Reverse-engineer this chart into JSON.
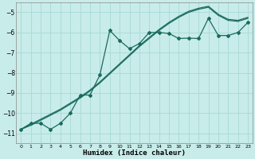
{
  "xlabel": "Humidex (Indice chaleur)",
  "bg_color": "#c8ecea",
  "grid_color": "#a8d8d4",
  "line_color": "#1a6b5e",
  "xlim": [
    -0.5,
    23.5
  ],
  "ylim": [
    -11.5,
    -4.5
  ],
  "yticks": [
    -11,
    -10,
    -9,
    -8,
    -7,
    -6,
    -5
  ],
  "xticks": [
    0,
    1,
    2,
    3,
    4,
    5,
    6,
    7,
    8,
    9,
    10,
    11,
    12,
    13,
    14,
    15,
    16,
    17,
    18,
    19,
    20,
    21,
    22,
    23
  ],
  "line1_x": [
    0,
    1,
    2,
    3,
    4,
    5,
    6,
    7,
    8,
    9,
    10,
    11,
    12,
    13,
    14,
    15,
    16,
    17,
    18,
    19,
    20,
    21,
    22,
    23
  ],
  "line1_y": [
    -10.8,
    -10.5,
    -10.5,
    -10.8,
    -10.5,
    -10.0,
    -9.1,
    -9.1,
    -8.1,
    -5.9,
    -6.4,
    -6.8,
    -6.55,
    -6.0,
    -6.0,
    -6.05,
    -6.3,
    -6.28,
    -6.3,
    -5.3,
    -6.15,
    -6.15,
    -6.0,
    -5.5
  ],
  "line2_x": [
    0,
    1,
    2,
    3,
    4,
    5,
    6,
    7,
    8,
    9,
    10,
    11,
    12,
    13,
    14,
    15,
    16,
    17,
    18,
    19,
    20,
    21,
    22,
    23
  ],
  "line2_y": [
    -10.8,
    -10.6,
    -10.35,
    -10.1,
    -9.85,
    -9.55,
    -9.25,
    -8.9,
    -8.5,
    -8.05,
    -7.6,
    -7.15,
    -6.7,
    -6.3,
    -5.9,
    -5.55,
    -5.25,
    -5.0,
    -4.85,
    -4.75,
    -5.15,
    -5.4,
    -5.45,
    -5.3
  ],
  "line3_x": [
    0,
    1,
    2,
    3,
    4,
    5,
    6,
    7,
    8,
    9,
    10,
    11,
    12,
    13,
    14,
    15,
    16,
    17,
    18,
    19,
    20,
    21,
    22,
    23
  ],
  "line3_y": [
    -10.8,
    -10.55,
    -10.3,
    -10.05,
    -9.8,
    -9.5,
    -9.2,
    -8.85,
    -8.45,
    -8.0,
    -7.55,
    -7.1,
    -6.65,
    -6.25,
    -5.85,
    -5.5,
    -5.2,
    -4.95,
    -4.8,
    -4.7,
    -5.1,
    -5.35,
    -5.4,
    -5.25
  ]
}
